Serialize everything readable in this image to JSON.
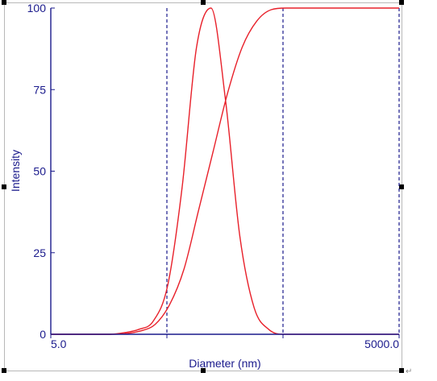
{
  "chart_data": {
    "type": "line",
    "xlabel": "Diameter (nm)",
    "ylabel": "Intensity",
    "x_scale": "log",
    "xlim": [
      5.0,
      5000.0
    ],
    "ylim": [
      0,
      100
    ],
    "x_tick_labels": [
      "5.0",
      "5000.0"
    ],
    "y_ticks": [
      0,
      25,
      50,
      75,
      100
    ],
    "grid": false,
    "dashed_vlines_x": [
      50.0,
      500.0,
      5000.0
    ],
    "series": [
      {
        "style": "distribution",
        "x": [
          5.0,
          16.2,
          21.6,
          28.6,
          38.1,
          50.8,
          67.6,
          90.0,
          119.9,
          159.6,
          212.5,
          282.9,
          376.6,
          501.4,
          5000.0
        ],
        "y": [
          0,
          0,
          0.5,
          1.5,
          4.0,
          15.0,
          45.0,
          88.0,
          100.0,
          72.0,
          30.0,
          8.0,
          1.5,
          0,
          0
        ]
      },
      {
        "style": "cumulative",
        "x": [
          5.0,
          16.2,
          22.1,
          29.5,
          39.5,
          52.6,
          70.2,
          93.7,
          125.0,
          166.8,
          222.6,
          297.1,
          396.5,
          530.0,
          5000.0
        ],
        "y": [
          0,
          0,
          0.2,
          1.0,
          3.0,
          9.0,
          20.0,
          38.0,
          56.0,
          74.0,
          88.0,
          96.0,
          99.5,
          100,
          100
        ]
      }
    ],
    "colors": {
      "axis": "#1a1a8c",
      "series": "#e8202a",
      "frame": "#b8b8b8"
    }
  }
}
